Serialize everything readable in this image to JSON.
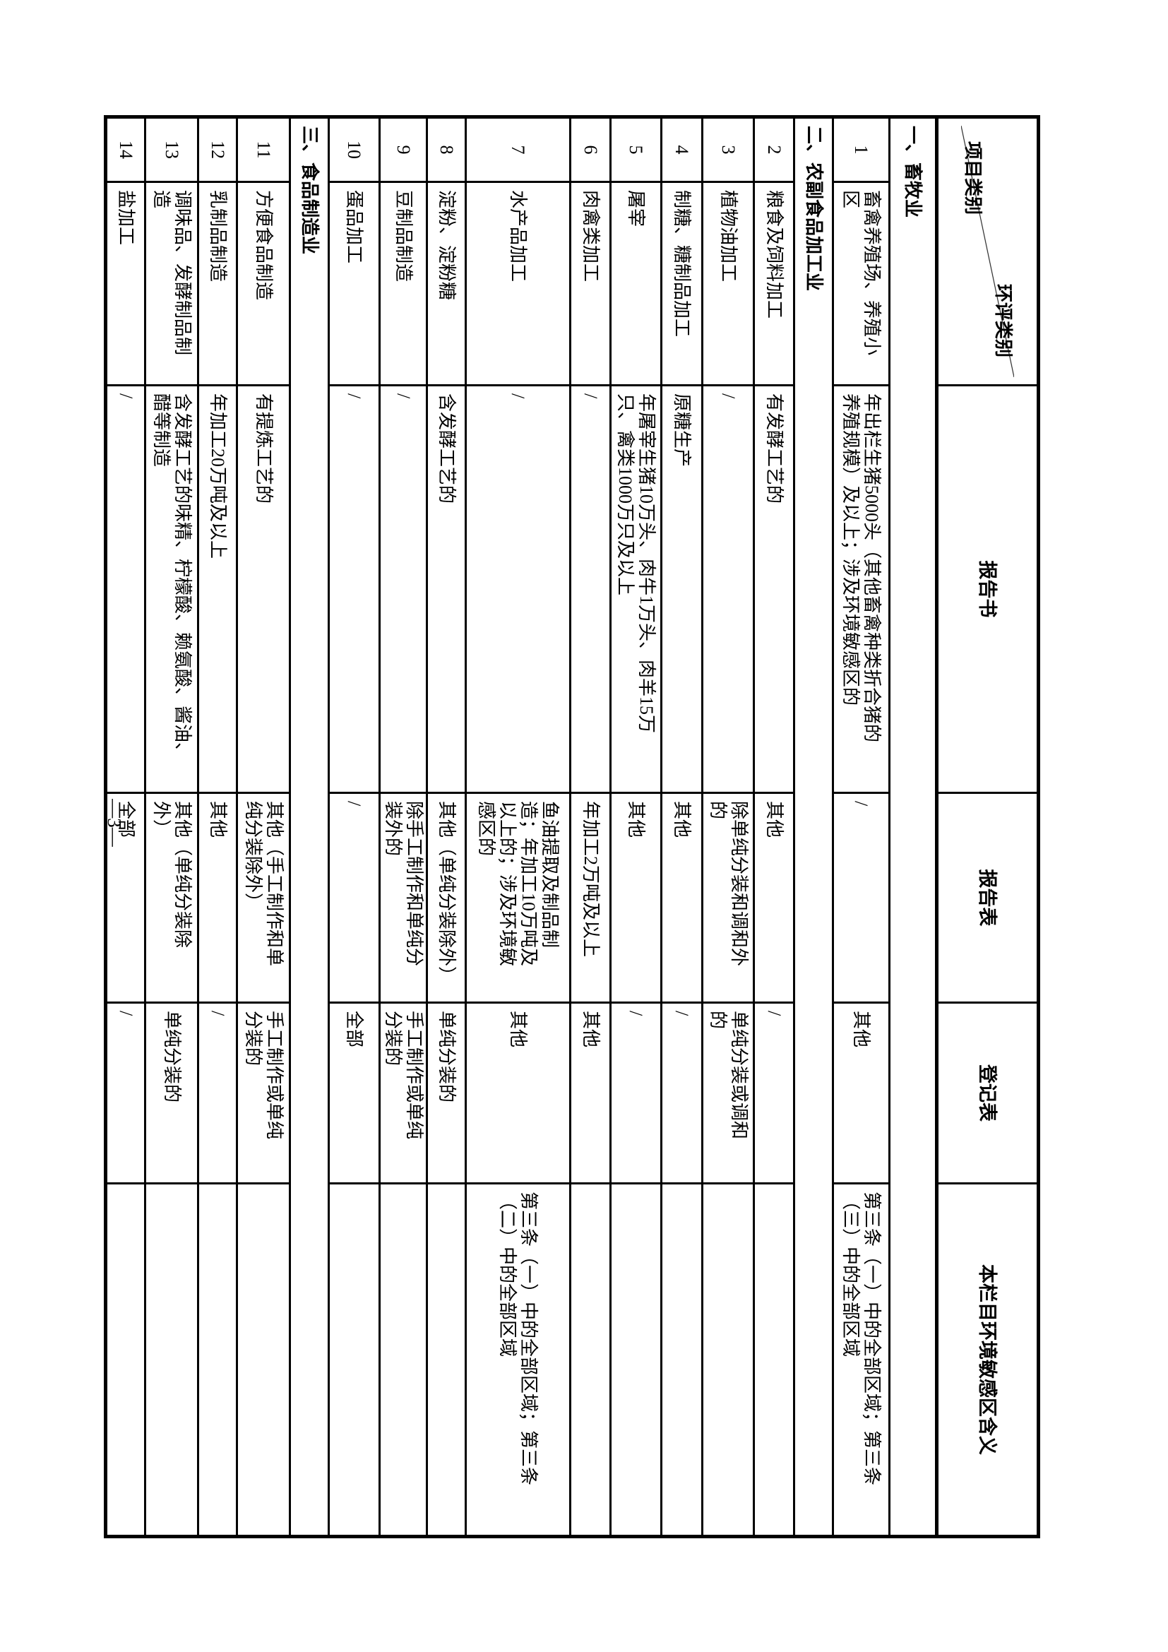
{
  "page": {
    "number": "—3—"
  },
  "table": {
    "corner": {
      "top": "环评类别",
      "bottom": "项目类别"
    },
    "columns": {
      "report_book": "报告书",
      "report_form": "报告表",
      "registration_form": "登记表",
      "sensitive_meaning": "本栏目环境敏感区含义"
    },
    "body": [
      {
        "type": "section",
        "label": "一、畜牧业"
      },
      {
        "type": "row",
        "no": "1",
        "name": "畜禽养殖场、养殖小\n区",
        "book": "年出栏生猪5000头（其他畜禽种类折合猪的\n养殖规模）及以上；涉及环境敏感区的",
        "form": "/",
        "reg": "其他",
        "sens": "第三条（一）中的全部区域；第三条\n（三）中的全部区域"
      },
      {
        "type": "section",
        "label": "二、农副食品加工业"
      },
      {
        "type": "row",
        "no": "2",
        "name": "粮食及饲料加工",
        "book": "有发酵工艺的",
        "form": "其他",
        "reg": "/",
        "sens": ""
      },
      {
        "type": "row",
        "no": "3",
        "name": "植物油加工",
        "book": "/",
        "form": "除单纯分装和调和外\n的",
        "reg": "单纯分装或调和\n的",
        "sens": ""
      },
      {
        "type": "row",
        "no": "4",
        "name": "制糖、糖制品加工",
        "book": "原糖生产",
        "form": "其他",
        "reg": "/",
        "sens": ""
      },
      {
        "type": "row",
        "no": "5",
        "name": "屠宰",
        "book": "年屠宰生猪10万头、肉牛1万头、肉羊15万\n只、禽类1000万只及以上",
        "form": "其他",
        "reg": "/",
        "sens": ""
      },
      {
        "type": "row",
        "no": "6",
        "name": "肉禽类加工",
        "book": "/",
        "form": "年加工2万吨及以上",
        "reg": "其他",
        "sens": ""
      },
      {
        "type": "row",
        "no": "7",
        "name": "水产品加工",
        "book": "/",
        "form": "鱼油提取及制品制\n造；年加工10万吨及\n以上的；涉及环境敏\n感区的",
        "reg": "其他",
        "sens": "第三条（一）中的全部区域；第三条\n（二）中的全部区域"
      },
      {
        "type": "row",
        "no": "8",
        "name": "淀粉、淀粉糖",
        "book": "含发酵工艺的",
        "form": "其他（单纯分装除外）",
        "reg": "单纯分装的",
        "sens": ""
      },
      {
        "type": "row",
        "no": "9",
        "name": "豆制品制造",
        "book": "/",
        "form": "除手工制作和单纯分\n装外的",
        "reg": "手工制作或单纯\n分装的",
        "sens": ""
      },
      {
        "type": "row",
        "no": "10",
        "name": "蛋品加工",
        "book": "/",
        "form": "/",
        "reg": "全部",
        "sens": ""
      },
      {
        "type": "section",
        "label": "三、食品制造业"
      },
      {
        "type": "row",
        "no": "11",
        "name": "方便食品制造",
        "book": "有提炼工艺的",
        "form": "其他（手工制作和单\n纯分装除外）",
        "reg": "手工制作或单纯\n分装的",
        "sens": ""
      },
      {
        "type": "row",
        "no": "12",
        "name": "乳制品制造",
        "book": "年加工20万吨及以上",
        "form": "其他",
        "reg": "/",
        "sens": ""
      },
      {
        "type": "row",
        "no": "13",
        "name": "调味品、发酵制品制\n造",
        "book": "含发酵工艺的味精、柠檬酸、赖氨酸、酱油、\n醋等制造",
        "form": "其他（单纯分装除\n外）",
        "reg": "单纯分装的",
        "sens": ""
      },
      {
        "type": "row",
        "no": "14",
        "name": "盐加工",
        "book": "/",
        "form": "全部",
        "reg": "/",
        "sens": ""
      }
    ]
  }
}
